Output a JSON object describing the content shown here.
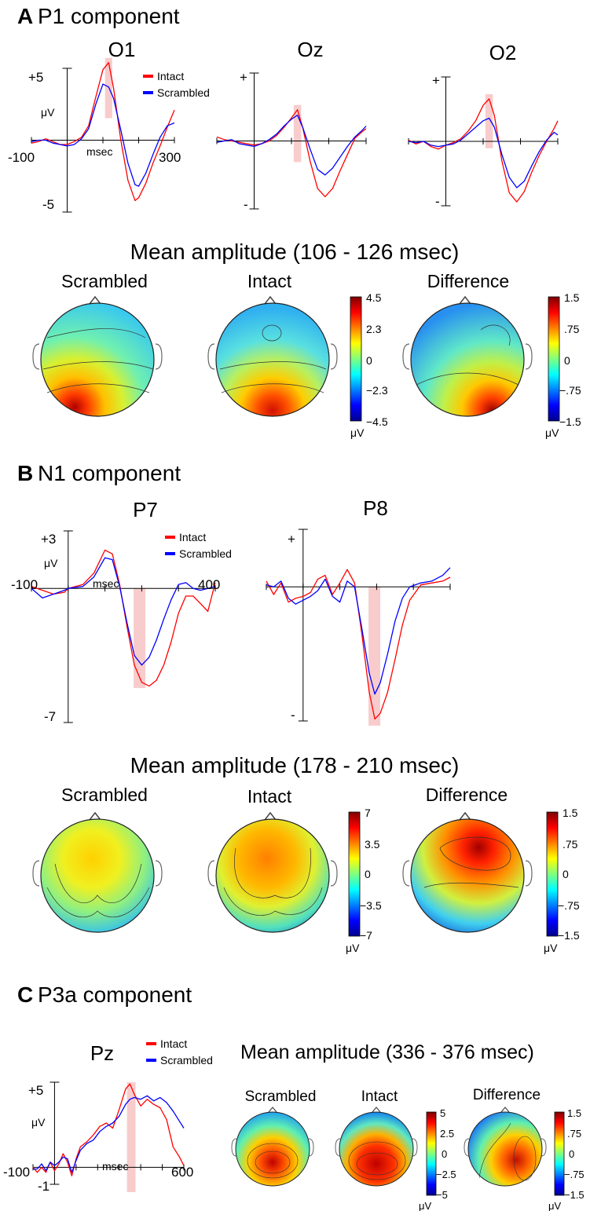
{
  "sections": [
    {
      "letter": "A",
      "title": "P1 component"
    },
    {
      "letter": "B",
      "title": "N1 component"
    },
    {
      "letter": "C",
      "title": "P3a component"
    }
  ],
  "legend": {
    "intact": "Intact",
    "scrambled": "Scrambled"
  },
  "colors": {
    "intact": "#ff0000",
    "scrambled": "#0000ff",
    "highlight": "#f8cccc"
  },
  "units": {
    "uv": "μV",
    "msec": "msec"
  },
  "mean_titles": {
    "a": "Mean amplitude (106 - 126 msec)",
    "b": "Mean amplitude (178 - 210 msec)",
    "c": "Mean amplitude (336 - 376 msec)"
  },
  "map_titles": {
    "scrambled": "Scrambled",
    "intact": "Intact",
    "difference": "Difference"
  },
  "colorbars": {
    "a_main": [
      "4.5",
      "2.3",
      "0",
      "−2.3",
      "−4.5"
    ],
    "a_diff": [
      "1.5",
      ".75",
      "0",
      "−.75",
      "−1.5"
    ],
    "b_main": [
      "7",
      "3.5",
      "0",
      "−3.5",
      "−7"
    ],
    "b_diff": [
      "1.5",
      ".75",
      "0",
      "−.75",
      "−1.5"
    ],
    "c_main": [
      "5",
      "2.5",
      "0",
      "−2.5",
      "−5"
    ],
    "c_diff": [
      "1.5",
      ".75",
      "0",
      "−.75",
      "−1.5"
    ]
  },
  "chart_data": [
    {
      "type": "line",
      "title": "O1",
      "section": "A",
      "xlim": [
        -100,
        300
      ],
      "ylim": [
        -5,
        5
      ],
      "xtick_labels": [
        "-100",
        "300"
      ],
      "ytick_labels": [
        "+5",
        "-5"
      ],
      "highlight_window": [
        106,
        126
      ],
      "x": [
        -100,
        -80,
        -60,
        -40,
        -20,
        0,
        20,
        40,
        60,
        80,
        100,
        116,
        130,
        150,
        170,
        190,
        200,
        220,
        240,
        260,
        280,
        300
      ],
      "series": [
        {
          "name": "Intact",
          "values": [
            -0.2,
            -0.1,
            0.1,
            -0.1,
            -0.3,
            -0.3,
            -0.1,
            0.2,
            1.0,
            3.0,
            4.9,
            5.4,
            3.6,
            0.0,
            -2.8,
            -4.2,
            -4.0,
            -3.0,
            -1.6,
            -0.4,
            0.9,
            2.1
          ]
        },
        {
          "name": "Scrambled",
          "values": [
            -0.1,
            0.0,
            0.0,
            -0.2,
            -0.3,
            -0.4,
            -0.3,
            0.1,
            0.8,
            2.5,
            3.9,
            3.7,
            2.9,
            0.7,
            -1.6,
            -3.1,
            -3.2,
            -2.3,
            -1.0,
            0.2,
            1.0,
            1.2
          ]
        }
      ]
    },
    {
      "type": "line",
      "title": "Oz",
      "section": "A",
      "xlim": [
        -100,
        300
      ],
      "ylim": [
        -5,
        5
      ],
      "ytick_labels": [
        "+",
        "-"
      ],
      "highlight_window": [
        106,
        126
      ],
      "x": [
        -100,
        -80,
        -60,
        -40,
        -20,
        0,
        20,
        40,
        60,
        80,
        100,
        116,
        130,
        150,
        170,
        190,
        210,
        230,
        250,
        270,
        290,
        300
      ],
      "series": [
        {
          "name": "Intact",
          "values": [
            0.3,
            0.1,
            0.0,
            -0.1,
            -0.2,
            -0.3,
            -0.2,
            0.0,
            0.4,
            1.0,
            1.7,
            2.3,
            1.0,
            -1.5,
            -3.5,
            -4.1,
            -3.5,
            -2.2,
            -1.0,
            0.2,
            0.7,
            0.9
          ]
        },
        {
          "name": "Scrambled",
          "values": [
            -0.1,
            0.0,
            0.1,
            -0.2,
            -0.3,
            -0.4,
            -0.2,
            0.1,
            0.5,
            1.1,
            1.6,
            1.9,
            1.0,
            -0.6,
            -2.1,
            -2.5,
            -2.0,
            -1.2,
            -0.4,
            0.3,
            0.8,
            1.1
          ]
        }
      ]
    },
    {
      "type": "line",
      "title": "O2",
      "section": "A",
      "xlim": [
        -100,
        300
      ],
      "ylim": [
        -5,
        5
      ],
      "ytick_labels": [
        "+",
        "-"
      ],
      "highlight_window": [
        106,
        126
      ],
      "x": [
        -100,
        -80,
        -60,
        -40,
        -20,
        0,
        20,
        40,
        60,
        80,
        100,
        116,
        130,
        150,
        170,
        190,
        210,
        230,
        250,
        270,
        290,
        300
      ],
      "series": [
        {
          "name": "Intact",
          "values": [
            0.1,
            -0.2,
            0.0,
            -0.4,
            -0.6,
            -0.3,
            -0.1,
            0.2,
            0.8,
            1.6,
            2.8,
            3.3,
            2.0,
            -1.5,
            -4.0,
            -4.7,
            -3.9,
            -2.4,
            -1.1,
            0.0,
            1.0,
            1.6
          ]
        },
        {
          "name": "Scrambled",
          "values": [
            0.0,
            -0.1,
            0.0,
            -0.3,
            -0.4,
            -0.3,
            -0.2,
            0.1,
            0.6,
            1.1,
            1.6,
            1.8,
            1.1,
            -1.0,
            -2.8,
            -3.6,
            -3.1,
            -1.9,
            -0.8,
            0.1,
            0.7,
            0.5
          ]
        }
      ]
    },
    {
      "type": "line",
      "title": "P7",
      "section": "B",
      "xlim": [
        -100,
        400
      ],
      "ylim": [
        -7,
        3
      ],
      "xtick_labels": [
        "-100",
        "400"
      ],
      "ytick_labels": [
        "+3",
        "-7"
      ],
      "highlight_window": [
        178,
        210
      ],
      "x": [
        -100,
        -70,
        -40,
        -10,
        0,
        40,
        70,
        100,
        120,
        140,
        160,
        180,
        200,
        220,
        240,
        260,
        280,
        300,
        320,
        340,
        360,
        380,
        400
      ],
      "series": [
        {
          "name": "Intact",
          "values": [
            0.1,
            -0.1,
            -0.3,
            -0.2,
            0.0,
            0.2,
            0.8,
            2.0,
            1.8,
            0.2,
            -2.0,
            -4.0,
            -4.9,
            -5.1,
            -4.8,
            -4.0,
            -2.8,
            -1.3,
            -0.4,
            -0.4,
            -0.8,
            -1.2,
            0.3
          ]
        },
        {
          "name": "Scrambled",
          "values": [
            0.0,
            -0.5,
            -0.3,
            -0.1,
            0.0,
            0.1,
            0.6,
            1.6,
            1.5,
            0.1,
            -1.8,
            -3.5,
            -4.0,
            -3.6,
            -2.7,
            -1.6,
            -0.6,
            0.2,
            0.3,
            0.0,
            -0.1,
            0.0,
            0.1
          ]
        }
      ]
    },
    {
      "type": "line",
      "title": "P8",
      "section": "B",
      "xlim": [
        -100,
        400
      ],
      "ylim": [
        -7,
        3
      ],
      "ytick_labels": [
        "+",
        "-"
      ],
      "highlight_window": [
        178,
        210
      ],
      "x": [
        -100,
        -80,
        -60,
        -40,
        -20,
        0,
        20,
        40,
        60,
        80,
        100,
        120,
        140,
        160,
        180,
        195,
        210,
        230,
        250,
        270,
        290,
        320,
        350,
        380,
        400
      ],
      "series": [
        {
          "name": "Intact",
          "values": [
            0.3,
            -0.4,
            0.2,
            -0.8,
            -0.6,
            -0.5,
            -0.3,
            0.4,
            0.6,
            -0.4,
            0.2,
            0.9,
            0.2,
            -2.5,
            -5.5,
            -6.9,
            -6.6,
            -5.5,
            -3.8,
            -2.0,
            -0.7,
            0.1,
            0.2,
            0.3,
            0.5
          ]
        },
        {
          "name": "Scrambled",
          "values": [
            0.1,
            0.0,
            0.3,
            -0.6,
            -0.9,
            -0.7,
            -0.5,
            -0.2,
            0.4,
            -0.5,
            -0.8,
            0.3,
            0.0,
            -2.2,
            -4.5,
            -5.6,
            -5.0,
            -3.5,
            -1.8,
            -0.6,
            0.0,
            0.2,
            0.3,
            0.6,
            1.0
          ]
        }
      ]
    },
    {
      "type": "line",
      "title": "Pz",
      "section": "C",
      "xlim": [
        -100,
        600
      ],
      "ylim": [
        -1,
        5
      ],
      "xtick_labels": [
        "-100",
        "600"
      ],
      "ytick_labels": [
        "+5",
        "-1"
      ],
      "highlight_window": [
        336,
        376
      ],
      "x": [
        -100,
        -80,
        -60,
        -40,
        -20,
        0,
        20,
        40,
        60,
        80,
        100,
        120,
        150,
        180,
        210,
        240,
        270,
        300,
        330,
        350,
        370,
        400,
        430,
        460,
        490,
        520,
        550,
        580,
        600
      ],
      "series": [
        {
          "name": "Intact",
          "values": [
            0.0,
            -0.3,
            0.0,
            -0.3,
            0.3,
            -0.2,
            0.2,
            0.8,
            0.3,
            -0.5,
            0.5,
            1.2,
            1.5,
            1.9,
            2.4,
            2.6,
            2.3,
            3.4,
            4.6,
            4.9,
            4.3,
            3.6,
            4.0,
            3.7,
            3.5,
            2.8,
            1.2,
            0.6,
            0.1
          ]
        },
        {
          "name": "Scrambled",
          "values": [
            -0.1,
            -0.1,
            0.2,
            -0.2,
            0.3,
            0.1,
            0.3,
            0.6,
            0.5,
            -0.3,
            0.4,
            1.0,
            1.4,
            1.6,
            2.1,
            2.4,
            2.6,
            3.0,
            3.7,
            4.0,
            4.1,
            4.0,
            4.2,
            3.9,
            4.1,
            3.8,
            3.3,
            2.7,
            2.3
          ]
        }
      ]
    }
  ]
}
